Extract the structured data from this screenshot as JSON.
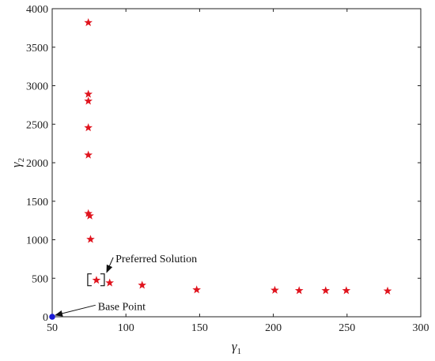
{
  "chart_data": {
    "type": "scatter",
    "title": "",
    "xlabel": "γ",
    "xlabel_sub": "1",
    "ylabel": "γ",
    "ylabel_sub": "2",
    "xlim": [
      50,
      300
    ],
    "ylim": [
      0,
      4000
    ],
    "xticks": [
      50,
      100,
      150,
      200,
      250,
      300
    ],
    "yticks": [
      0,
      500,
      1000,
      1500,
      2000,
      2500,
      3000,
      3500,
      4000
    ],
    "grid": false,
    "series": [
      {
        "marker": "star",
        "color": "#e0141e",
        "points": [
          {
            "x": 74.5,
            "y": 3820
          },
          {
            "x": 74.5,
            "y": 2890
          },
          {
            "x": 74.5,
            "y": 2800
          },
          {
            "x": 74.5,
            "y": 2455
          },
          {
            "x": 74.5,
            "y": 2100
          },
          {
            "x": 74.5,
            "y": 1340
          },
          {
            "x": 75.5,
            "y": 1310
          },
          {
            "x": 76,
            "y": 1005
          },
          {
            "x": 80,
            "y": 475
          },
          {
            "x": 89,
            "y": 440
          },
          {
            "x": 111,
            "y": 410
          },
          {
            "x": 148,
            "y": 350
          },
          {
            "x": 201,
            "y": 345
          },
          {
            "x": 217.5,
            "y": 340
          },
          {
            "x": 235.5,
            "y": 340
          },
          {
            "x": 249.5,
            "y": 340
          },
          {
            "x": 277.5,
            "y": 335
          }
        ]
      },
      {
        "marker": "circle",
        "color": "#1a1ad6",
        "points": [
          {
            "x": 50,
            "y": 0
          }
        ]
      }
    ],
    "annotations": [
      {
        "text": "Preferred Solution",
        "target": {
          "x": 80,
          "y": 475
        },
        "text_at": {
          "x": 93,
          "y": 750
        },
        "box": true
      },
      {
        "text": "Base Point",
        "target": {
          "x": 50,
          "y": 0
        },
        "text_at": {
          "x": 81,
          "y": 130
        },
        "box": false
      }
    ]
  }
}
